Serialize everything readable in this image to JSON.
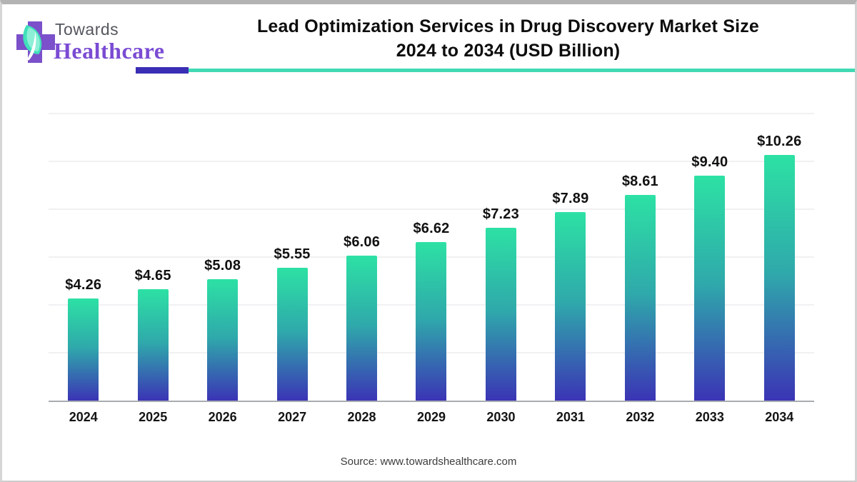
{
  "logo": {
    "towards": "Towards",
    "healthcare": "Healthcare",
    "cross_color": "#7b50ca",
    "leaf_color": "#40e0bb",
    "leaf_light": "#8df0d6"
  },
  "header": {
    "title_line1": "Lead Optimization Services in Drug Discovery Market Size",
    "title_line2": "2024 to 2034 (USD Billion)",
    "underline_purple": "#3a2eb5",
    "underline_teal": "#41d9b3"
  },
  "chart_data": {
    "type": "bar",
    "title": "Lead Optimization Services in Drug Discovery Market Size 2024 to 2034 (USD Billion)",
    "categories": [
      "2024",
      "2025",
      "2026",
      "2027",
      "2028",
      "2029",
      "2030",
      "2031",
      "2032",
      "2033",
      "2034"
    ],
    "values": [
      4.26,
      4.65,
      5.08,
      5.55,
      6.06,
      6.62,
      7.23,
      7.89,
      8.61,
      9.4,
      10.26
    ],
    "value_labels": [
      "$4.26",
      "$4.65",
      "$5.08",
      "$5.55",
      "$6.06",
      "$6.62",
      "$7.23",
      "$7.89",
      "$8.61",
      "$9.40",
      "$10.26"
    ],
    "xlabel": "",
    "ylabel": "",
    "unit": "USD Billion",
    "ylim": [
      0,
      12
    ],
    "grid_step": 2,
    "grid": true,
    "legend": false,
    "bar_gradient_top": "#2de1a4",
    "bar_gradient_mid": "#2fa9ab",
    "bar_gradient_bottom": "#3b34b5"
  },
  "footer": {
    "source": "Source: www.towardshealthcare.com"
  }
}
